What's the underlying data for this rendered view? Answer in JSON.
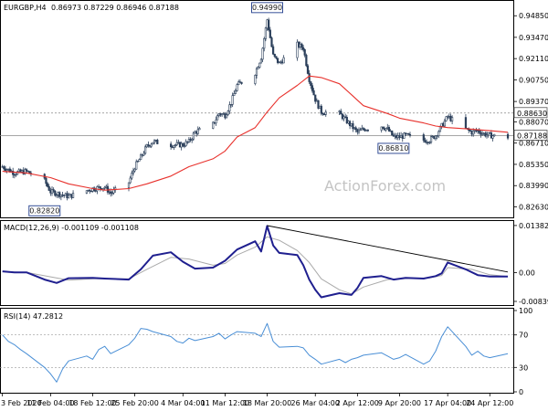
{
  "symbol_line": {
    "symbol": "EURGBP,H4",
    "ohlc": "0.86973 0.87229 0.86946 0.87188"
  },
  "watermark": "ActionForex.com",
  "colors": {
    "candle": "#2b3f5a",
    "ma": "#e8312c",
    "macd": "#1f1f8f",
    "signal": "#aaaaaa",
    "rsi": "#4a8fd6",
    "grid": "#b8b8b8",
    "tag_border": "#1f3c8c"
  },
  "chart_data": [
    {
      "type": "candlestick",
      "panel": "price",
      "ylim": [
        0.8196,
        0.9574
      ],
      "y_ticks": [
        "0.94850",
        "0.93470",
        "0.92110",
        "0.90750",
        "0.89370",
        "0.88070",
        "0.86710",
        "0.85350",
        "0.83990",
        "0.82630"
      ],
      "price_tags": [
        {
          "label": "0.88630",
          "value": 0.8863,
          "horizontal_line": true
        },
        {
          "label": "0.87188",
          "value": 0.87188,
          "horizontal_line": true,
          "current": true
        }
      ],
      "annotations": [
        {
          "label": "0.94990",
          "value": 0.9499,
          "at_date": "18 Mar 2020"
        },
        {
          "label": "0.82820",
          "value": 0.8282,
          "at_date": "10 Feb 2020"
        },
        {
          "label": "0.86810",
          "value": 0.8681,
          "at_date": "8 Apr 2020"
        }
      ],
      "close_path": [
        [
          "3 Feb 2020",
          0.852
        ],
        [
          "5 Feb",
          0.848
        ],
        [
          "7 Feb",
          0.849
        ],
        [
          "10 Feb",
          0.843
        ],
        [
          "11 Feb",
          0.836
        ],
        [
          "13 Feb",
          0.834
        ],
        [
          "14 Feb",
          0.833
        ],
        [
          "18 Feb",
          0.838
        ],
        [
          "20 Feb",
          0.839
        ],
        [
          "21 Feb",
          0.835
        ],
        [
          "24 Feb",
          0.842
        ],
        [
          "25 Feb",
          0.852
        ],
        [
          "26 Feb",
          0.858
        ],
        [
          "27 Feb",
          0.865
        ],
        [
          "28 Feb",
          0.868
        ],
        [
          "2 Mar",
          0.866
        ],
        [
          "4 Mar",
          0.866
        ],
        [
          "5 Mar",
          0.868
        ],
        [
          "6 Mar",
          0.874
        ],
        [
          "9 Mar",
          0.879
        ],
        [
          "10 Mar",
          0.886
        ],
        [
          "11 Mar",
          0.885
        ],
        [
          "12 Mar",
          0.893
        ],
        [
          "13 Mar",
          0.904
        ],
        [
          "16 Mar",
          0.912
        ],
        [
          "17 Mar",
          0.922
        ],
        [
          "18 Mar",
          0.946
        ],
        [
          "19 Mar",
          0.923
        ],
        [
          "20 Mar",
          0.918
        ],
        [
          "23 Mar",
          0.93
        ],
        [
          "24 Mar",
          0.928
        ],
        [
          "25 Mar",
          0.908
        ],
        [
          "26 Mar",
          0.895
        ],
        [
          "27 Mar",
          0.887
        ],
        [
          "30 Mar",
          0.886
        ],
        [
          "31 Mar",
          0.882
        ],
        [
          "1 Apr",
          0.878
        ],
        [
          "2 Apr",
          0.874
        ],
        [
          "3 Apr",
          0.876
        ],
        [
          "6 Apr",
          0.878
        ],
        [
          "7 Apr",
          0.876
        ],
        [
          "8 Apr",
          0.871
        ],
        [
          "9 Apr",
          0.871
        ],
        [
          "10 Apr",
          0.872
        ],
        [
          "13 Apr",
          0.869
        ],
        [
          "14 Apr",
          0.869
        ],
        [
          "15 Apr",
          0.872
        ],
        [
          "16 Apr",
          0.878
        ],
        [
          "17 Apr",
          0.884
        ],
        [
          "20 Apr",
          0.876
        ],
        [
          "21 Apr",
          0.874
        ],
        [
          "22 Apr",
          0.875
        ],
        [
          "23 Apr",
          0.873
        ],
        [
          "24 Apr",
          0.872
        ],
        [
          "27 Apr",
          0.871
        ]
      ],
      "moving_average": [
        [
          "3 Feb 2020",
          0.849
        ],
        [
          "7 Feb",
          0.848
        ],
        [
          "11 Feb",
          0.845
        ],
        [
          "14 Feb",
          0.841
        ],
        [
          "18 Feb",
          0.838
        ],
        [
          "20 Feb",
          0.837
        ],
        [
          "24 Feb",
          0.838
        ],
        [
          "27 Feb",
          0.841
        ],
        [
          "2 Mar",
          0.846
        ],
        [
          "5 Mar",
          0.852
        ],
        [
          "9 Mar",
          0.857
        ],
        [
          "11 Mar",
          0.862
        ],
        [
          "13 Mar",
          0.871
        ],
        [
          "16 Mar",
          0.877
        ],
        [
          "18 Mar",
          0.887
        ],
        [
          "20 Mar",
          0.896
        ],
        [
          "23 Mar",
          0.904
        ],
        [
          "25 Mar",
          0.91
        ],
        [
          "27 Mar",
          0.909
        ],
        [
          "30 Mar",
          0.905
        ],
        [
          "1 Apr",
          0.898
        ],
        [
          "3 Apr",
          0.891
        ],
        [
          "7 Apr",
          0.886
        ],
        [
          "9 Apr",
          0.883
        ],
        [
          "13 Apr",
          0.88
        ],
        [
          "15 Apr",
          0.878
        ],
        [
          "17 Apr",
          0.877
        ],
        [
          "21 Apr",
          0.876
        ],
        [
          "24 Apr",
          0.875
        ],
        [
          "27 Apr",
          0.874
        ]
      ]
    },
    {
      "type": "line",
      "panel": "macd",
      "title": "MACD(12,26,9) -0.001109 -0.001108",
      "ylim": [
        -0.0092,
        0.0146
      ],
      "y_ticks": [
        "0.013821",
        "0.00",
        "-0.008397"
      ],
      "macd": [
        [
          "3 Feb 2020",
          0.0004
        ],
        [
          "5 Feb",
          0.0001
        ],
        [
          "7 Feb",
          0.0001
        ],
        [
          "10 Feb",
          -0.002
        ],
        [
          "12 Feb",
          -0.003
        ],
        [
          "14 Feb",
          -0.0016
        ],
        [
          "18 Feb",
          -0.0015
        ],
        [
          "20 Feb",
          -0.0017
        ],
        [
          "24 Feb",
          -0.002
        ],
        [
          "26 Feb",
          0.001
        ],
        [
          "28 Feb",
          0.005
        ],
        [
          "2 Mar",
          0.006
        ],
        [
          "4 Mar",
          0.0032
        ],
        [
          "6 Mar",
          0.0012
        ],
        [
          "9 Mar",
          0.0015
        ],
        [
          "11 Mar",
          0.0035
        ],
        [
          "13 Mar",
          0.0068
        ],
        [
          "16 Mar",
          0.0092
        ],
        [
          "17 Mar",
          0.0062
        ],
        [
          "18 Mar",
          0.0137
        ],
        [
          "19 Mar",
          0.008
        ],
        [
          "20 Mar",
          0.0058
        ],
        [
          "23 Mar",
          0.0052
        ],
        [
          "24 Mar",
          0.0022
        ],
        [
          "25 Mar",
          -0.002
        ],
        [
          "26 Mar",
          -0.005
        ],
        [
          "27 Mar",
          -0.0072
        ],
        [
          "30 Mar",
          -0.006
        ],
        [
          "1 Apr",
          -0.0065
        ],
        [
          "2 Apr",
          -0.0045
        ],
        [
          "3 Apr",
          -0.0015
        ],
        [
          "6 Apr",
          -0.001
        ],
        [
          "8 Apr",
          -0.002
        ],
        [
          "10 Apr",
          -0.0015
        ],
        [
          "13 Apr",
          -0.0017
        ],
        [
          "15 Apr",
          -0.001
        ],
        [
          "16 Apr",
          -0.0002
        ],
        [
          "17 Apr",
          0.003
        ],
        [
          "20 Apr",
          0.001
        ],
        [
          "22 Apr",
          -0.0007
        ],
        [
          "24 Apr",
          -0.0011
        ],
        [
          "27 Apr",
          -0.0011
        ]
      ],
      "signal": [
        [
          "3 Feb 2020",
          0.0003
        ],
        [
          "7 Feb",
          0.0001
        ],
        [
          "11 Feb",
          -0.0012
        ],
        [
          "14 Feb",
          -0.0022
        ],
        [
          "18 Feb",
          -0.0018
        ],
        [
          "24 Feb",
          -0.0018
        ],
        [
          "27 Feb",
          0.001
        ],
        [
          "2 Mar",
          0.0045
        ],
        [
          "5 Mar",
          0.004
        ],
        [
          "9 Mar",
          0.0022
        ],
        [
          "11 Mar",
          0.0027
        ],
        [
          "13 Mar",
          0.0052
        ],
        [
          "16 Mar",
          0.0075
        ],
        [
          "18 Mar",
          0.0105
        ],
        [
          "20 Mar",
          0.0095
        ],
        [
          "23 Mar",
          0.0065
        ],
        [
          "25 Mar",
          0.003
        ],
        [
          "27 Mar",
          -0.0018
        ],
        [
          "30 Mar",
          -0.005
        ],
        [
          "1 Apr",
          -0.0062
        ],
        [
          "3 Apr",
          -0.0042
        ],
        [
          "7 Apr",
          -0.002
        ],
        [
          "10 Apr",
          -0.0017
        ],
        [
          "14 Apr",
          -0.0015
        ],
        [
          "16 Apr",
          -0.0008
        ],
        [
          "17 Apr",
          0.0015
        ],
        [
          "21 Apr",
          0.001
        ],
        [
          "24 Apr",
          -0.0006
        ],
        [
          "27 Apr",
          -0.0011
        ]
      ],
      "trendline": [
        [
          "18 Mar 2020",
          0.0138
        ],
        [
          "27 Apr",
          0.0002
        ]
      ]
    },
    {
      "type": "line",
      "panel": "rsi",
      "title": "RSI(14) 47.2812",
      "ylim": [
        0,
        100
      ],
      "y_ticks": [
        "100",
        "70",
        "30",
        "0"
      ],
      "levels": [
        70,
        30
      ],
      "rsi": [
        [
          "3 Feb 2020",
          70
        ],
        [
          "4 Feb",
          62
        ],
        [
          "5 Feb",
          58
        ],
        [
          "6 Feb",
          52
        ],
        [
          "7 Feb",
          47
        ],
        [
          "10 Feb",
          30
        ],
        [
          "11 Feb",
          22
        ],
        [
          "12 Feb",
          12
        ],
        [
          "13 Feb",
          28
        ],
        [
          "14 Feb",
          38
        ],
        [
          "17 Feb",
          44
        ],
        [
          "18 Feb",
          40
        ],
        [
          "19 Feb",
          52
        ],
        [
          "20 Feb",
          56
        ],
        [
          "21 Feb",
          47
        ],
        [
          "24 Feb",
          58
        ],
        [
          "25 Feb",
          66
        ],
        [
          "26 Feb",
          78
        ],
        [
          "27 Feb",
          77
        ],
        [
          "28 Feb",
          74
        ],
        [
          "2 Mar",
          68
        ],
        [
          "3 Mar",
          62
        ],
        [
          "4 Mar",
          60
        ],
        [
          "5 Mar",
          66
        ],
        [
          "6 Mar",
          63
        ],
        [
          "9 Mar",
          68
        ],
        [
          "10 Mar",
          72
        ],
        [
          "11 Mar",
          65
        ],
        [
          "12 Mar",
          70
        ],
        [
          "13 Mar",
          74
        ],
        [
          "16 Mar",
          72
        ],
        [
          "17 Mar",
          68
        ],
        [
          "18 Mar",
          84
        ],
        [
          "19 Mar",
          62
        ],
        [
          "20 Mar",
          55
        ],
        [
          "23 Mar",
          56
        ],
        [
          "24 Mar",
          54
        ],
        [
          "25 Mar",
          45
        ],
        [
          "26 Mar",
          40
        ],
        [
          "27 Mar",
          34
        ],
        [
          "30 Mar",
          40
        ],
        [
          "31 Mar",
          36
        ],
        [
          "1 Apr",
          40
        ],
        [
          "2 Apr",
          42
        ],
        [
          "3 Apr",
          45
        ],
        [
          "6 Apr",
          48
        ],
        [
          "7 Apr",
          44
        ],
        [
          "8 Apr",
          40
        ],
        [
          "9 Apr",
          42
        ],
        [
          "10 Apr",
          46
        ],
        [
          "13 Apr",
          34
        ],
        [
          "14 Apr",
          38
        ],
        [
          "15 Apr",
          50
        ],
        [
          "16 Apr",
          68
        ],
        [
          "17 Apr",
          80
        ],
        [
          "20 Apr",
          56
        ],
        [
          "21 Apr",
          45
        ],
        [
          "22 Apr",
          50
        ],
        [
          "23 Apr",
          44
        ],
        [
          "24 Apr",
          42
        ],
        [
          "27 Apr",
          47
        ]
      ]
    }
  ],
  "time_axis": {
    "labels": [
      {
        "label": "3 Feb 2020",
        "date": "3 Feb 2020"
      },
      {
        "label": "11 Feb 04:00",
        "date": "11 Feb"
      },
      {
        "label": "18 Feb 12:00",
        "date": "18 Feb"
      },
      {
        "label": "25 Feb 20:00",
        "date": "25 Feb"
      },
      {
        "label": "4 Mar 04:00",
        "date": "4 Mar"
      },
      {
        "label": "11 Mar 12:00",
        "date": "11 Mar"
      },
      {
        "label": "18 Mar 20:00",
        "date": "18 Mar"
      },
      {
        "label": "26 Mar 04:00",
        "date": "26 Mar"
      },
      {
        "label": "2 Apr 12:00",
        "date": "2 Apr"
      },
      {
        "label": "9 Apr 20:00",
        "date": "9 Apr"
      },
      {
        "label": "17 Apr 04:00",
        "date": "17 Apr"
      },
      {
        "label": "24 Apr 12:00",
        "date": "24 Apr"
      }
    ]
  }
}
